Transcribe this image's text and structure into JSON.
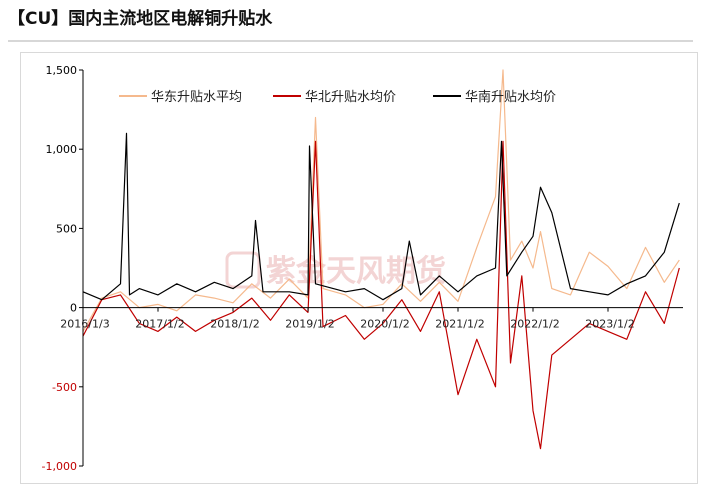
{
  "title": "【CU】国内主流地区电解铜升贴水",
  "chart_data": {
    "type": "line",
    "title": "",
    "xlabel": "",
    "ylabel": "",
    "ylim": [
      -1000,
      1500
    ],
    "yticks": [
      -1000,
      -500,
      0,
      500,
      1000,
      1500
    ],
    "ytick_labels": [
      "-1,000",
      "-500",
      "0",
      "500",
      "1,000",
      "1,500"
    ],
    "negative_tick_color": "#c00000",
    "x_tick_labels": [
      "2016/1/3",
      "2017/1/2",
      "2018/1/2",
      "2019/1/2",
      "2020/1/2",
      "2021/1/2",
      "2022/1/2",
      "2023/1/2"
    ],
    "grid": false,
    "legend_position": "top",
    "watermark_text": "紫金天风期货",
    "series": [
      {
        "name": "华东升贴水平均",
        "color": "#f5b98d",
        "values": [
          [
            0,
            -150
          ],
          [
            0.25,
            60
          ],
          [
            0.5,
            100
          ],
          [
            0.75,
            0
          ],
          [
            1,
            20
          ],
          [
            1.25,
            -20
          ],
          [
            1.5,
            80
          ],
          [
            1.75,
            60
          ],
          [
            2,
            30
          ],
          [
            2.25,
            150
          ],
          [
            2.5,
            60
          ],
          [
            2.75,
            180
          ],
          [
            3,
            60
          ],
          [
            3.1,
            1200
          ],
          [
            3.2,
            120
          ],
          [
            3.5,
            80
          ],
          [
            3.75,
            0
          ],
          [
            4,
            20
          ],
          [
            4.25,
            150
          ],
          [
            4.5,
            40
          ],
          [
            4.75,
            160
          ],
          [
            5,
            40
          ],
          [
            5.25,
            380
          ],
          [
            5.5,
            700
          ],
          [
            5.6,
            1500
          ],
          [
            5.7,
            300
          ],
          [
            5.85,
            420
          ],
          [
            6,
            250
          ],
          [
            6.1,
            480
          ],
          [
            6.25,
            120
          ],
          [
            6.5,
            80
          ],
          [
            6.75,
            350
          ],
          [
            7,
            260
          ],
          [
            7.25,
            120
          ],
          [
            7.5,
            380
          ],
          [
            7.75,
            160
          ],
          [
            7.95,
            300
          ]
        ]
      },
      {
        "name": "华北升贴水均价",
        "color": "#c00000",
        "values": [
          [
            0,
            -180
          ],
          [
            0.25,
            50
          ],
          [
            0.5,
            80
          ],
          [
            0.75,
            -100
          ],
          [
            1,
            -150
          ],
          [
            1.25,
            -60
          ],
          [
            1.5,
            -150
          ],
          [
            1.75,
            -80
          ],
          [
            2,
            -30
          ],
          [
            2.25,
            60
          ],
          [
            2.5,
            -80
          ],
          [
            2.75,
            80
          ],
          [
            3,
            -30
          ],
          [
            3.1,
            1050
          ],
          [
            3.2,
            -120
          ],
          [
            3.5,
            -50
          ],
          [
            3.75,
            -200
          ],
          [
            4,
            -100
          ],
          [
            4.25,
            50
          ],
          [
            4.5,
            -150
          ],
          [
            4.75,
            100
          ],
          [
            5,
            -550
          ],
          [
            5.25,
            -200
          ],
          [
            5.5,
            -500
          ],
          [
            5.6,
            1050
          ],
          [
            5.7,
            -350
          ],
          [
            5.85,
            200
          ],
          [
            6,
            -650
          ],
          [
            6.1,
            -890
          ],
          [
            6.25,
            -300
          ],
          [
            6.5,
            -200
          ],
          [
            6.75,
            -100
          ],
          [
            7,
            -150
          ],
          [
            7.25,
            -200
          ],
          [
            7.5,
            100
          ],
          [
            7.75,
            -100
          ],
          [
            7.95,
            250
          ]
        ]
      },
      {
        "name": "华南升贴水均价",
        "color": "#000000",
        "values": [
          [
            0,
            100
          ],
          [
            0.25,
            50
          ],
          [
            0.5,
            150
          ],
          [
            0.58,
            1100
          ],
          [
            0.62,
            80
          ],
          [
            0.75,
            120
          ],
          [
            1,
            80
          ],
          [
            1.25,
            150
          ],
          [
            1.5,
            100
          ],
          [
            1.75,
            160
          ],
          [
            2,
            120
          ],
          [
            2.25,
            200
          ],
          [
            2.3,
            550
          ],
          [
            2.4,
            100
          ],
          [
            2.75,
            100
          ],
          [
            3,
            80
          ],
          [
            3.02,
            1020
          ],
          [
            3.1,
            150
          ],
          [
            3.5,
            100
          ],
          [
            3.75,
            120
          ],
          [
            4,
            50
          ],
          [
            4.25,
            120
          ],
          [
            4.35,
            420
          ],
          [
            4.5,
            80
          ],
          [
            4.75,
            200
          ],
          [
            5,
            100
          ],
          [
            5.25,
            200
          ],
          [
            5.5,
            250
          ],
          [
            5.58,
            1050
          ],
          [
            5.65,
            200
          ],
          [
            5.85,
            350
          ],
          [
            6,
            450
          ],
          [
            6.1,
            760
          ],
          [
            6.25,
            600
          ],
          [
            6.5,
            120
          ],
          [
            6.75,
            100
          ],
          [
            7,
            80
          ],
          [
            7.25,
            150
          ],
          [
            7.5,
            200
          ],
          [
            7.75,
            350
          ],
          [
            7.95,
            660
          ]
        ]
      }
    ]
  }
}
